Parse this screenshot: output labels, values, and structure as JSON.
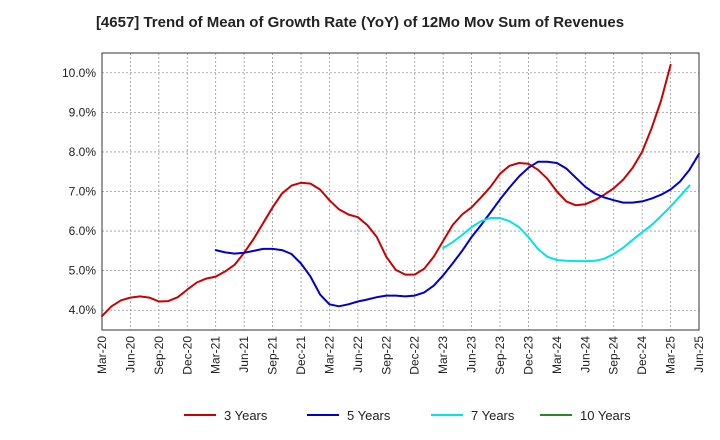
{
  "chart_data": {
    "type": "line",
    "title": "[4657]  Trend of Mean of Growth Rate (YoY) of 12Mo Mov Sum of Revenues",
    "xlabel": "",
    "ylabel": "",
    "ylim": [
      3.5,
      10.5
    ],
    "y_ticks": [
      4.0,
      5.0,
      6.0,
      7.0,
      8.0,
      9.0,
      10.0
    ],
    "y_tick_labels": [
      "4.0%",
      "5.0%",
      "6.0%",
      "7.0%",
      "8.0%",
      "9.0%",
      "10.0%"
    ],
    "x_tick_labels": [
      "Mar-20",
      "Jun-20",
      "Sep-20",
      "Dec-20",
      "Mar-21",
      "Jun-21",
      "Sep-21",
      "Dec-21",
      "Mar-22",
      "Jun-22",
      "Sep-22",
      "Dec-22",
      "Mar-23",
      "Jun-23",
      "Sep-23",
      "Dec-23",
      "Mar-24",
      "Jun-24",
      "Sep-24",
      "Dec-24",
      "Mar-25",
      "Jun-25"
    ],
    "grid": true,
    "legend_position": "bottom",
    "series": [
      {
        "name": "3 Years",
        "color": "#cc0000",
        "start_index": 0,
        "values": [
          3.85,
          4.1,
          4.25,
          4.32,
          4.35,
          4.32,
          4.22,
          4.23,
          4.33,
          4.52,
          4.7,
          4.8,
          4.85,
          4.98,
          5.15,
          5.45,
          5.8,
          6.2,
          6.6,
          6.95,
          7.15,
          7.22,
          7.2,
          7.05,
          6.78,
          6.55,
          6.42,
          6.35,
          6.15,
          5.85,
          5.35,
          5.02,
          4.9,
          4.9,
          5.05,
          5.35,
          5.75,
          6.15,
          6.42,
          6.6,
          6.85,
          7.12,
          7.45,
          7.65,
          7.72,
          7.7,
          7.55,
          7.32,
          7.0,
          6.75,
          6.65,
          6.68,
          6.78,
          6.92,
          7.08,
          7.3,
          7.6,
          8.0,
          8.6,
          9.3,
          10.2
        ]
      },
      {
        "name": "5 Years",
        "color": "#0000cc",
        "start_index": 12,
        "values": [
          5.52,
          5.46,
          5.43,
          5.45,
          5.5,
          5.55,
          5.55,
          5.52,
          5.42,
          5.18,
          4.85,
          4.4,
          4.15,
          4.1,
          4.15,
          4.22,
          4.27,
          4.33,
          4.37,
          4.37,
          4.35,
          4.37,
          4.45,
          4.62,
          4.88,
          5.18,
          5.5,
          5.85,
          6.15,
          6.47,
          6.8,
          7.1,
          7.38,
          7.6,
          7.75,
          7.75,
          7.72,
          7.58,
          7.35,
          7.12,
          6.95,
          6.85,
          6.78,
          6.72,
          6.72,
          6.75,
          6.82,
          6.92,
          7.05,
          7.25,
          7.55,
          7.95
        ]
      },
      {
        "name": "7 Years",
        "color": "#00e5e5",
        "start_index": 36,
        "values": [
          5.57,
          5.72,
          5.9,
          6.1,
          6.25,
          6.33,
          6.33,
          6.25,
          6.1,
          5.85,
          5.55,
          5.35,
          5.27,
          5.25,
          5.24,
          5.24,
          5.25,
          5.3,
          5.42,
          5.58,
          5.78,
          5.97,
          6.15,
          6.38,
          6.62,
          6.88,
          7.15
        ]
      },
      {
        "name": "10 Years",
        "color": "#228b22",
        "start_index": 0,
        "values": []
      }
    ]
  }
}
